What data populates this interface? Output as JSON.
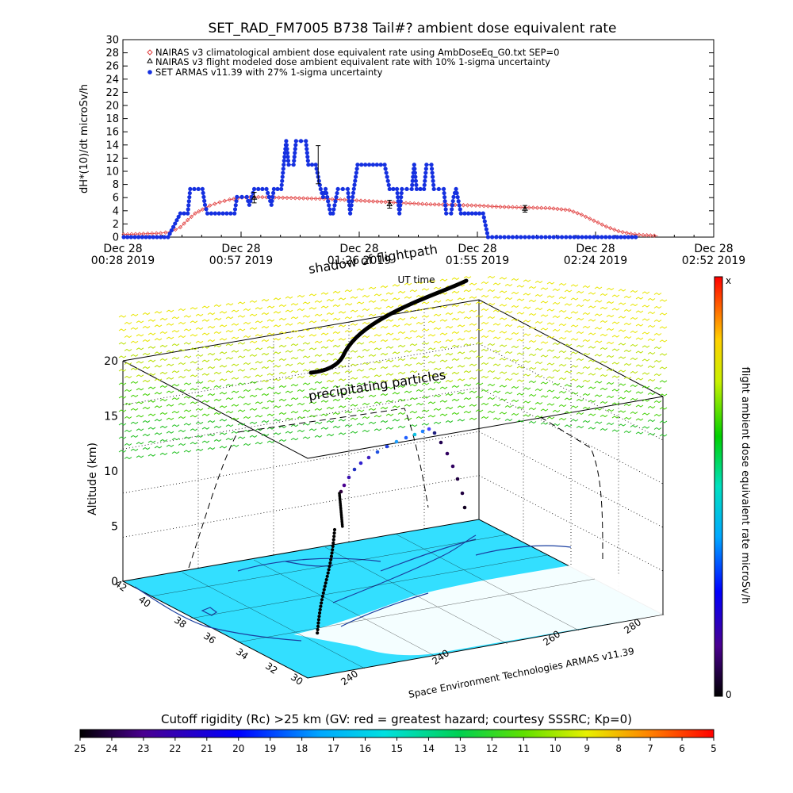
{
  "title": "SET_RAD_FM7005  B738 Tail#? ambient dose equivalent rate",
  "colors": {
    "climatological": "#e03c3c",
    "armas": "#1530e0",
    "modeled": "#000000",
    "background": "#ffffff",
    "surface": "#33dfff",
    "flightpath_shadow": "#000000"
  },
  "chart_data": [
    {
      "type": "line",
      "ylabel": "dH*(10)/dt microSv/h",
      "ylim": [
        0,
        30
      ],
      "yticks": [
        "0",
        "2",
        "4",
        "6",
        "8",
        "10",
        "12",
        "14",
        "16",
        "18",
        "20",
        "22",
        "24",
        "26",
        "28",
        "30"
      ],
      "xlim_hours_ut": [
        0.4667,
        2.8667
      ],
      "xticks": [
        {
          "line1": "Dec 28",
          "line2": "00:28 2019"
        },
        {
          "line1": "Dec 28",
          "line2": "00:57 2019"
        },
        {
          "line1": "Dec 28",
          "line2": "01:26 2019"
        },
        {
          "line1": "Dec 28",
          "line2": "01:55 2019"
        },
        {
          "line1": "Dec 28",
          "line2": "02:24 2019"
        },
        {
          "line1": "Dec 28",
          "line2": "02:52 2019"
        }
      ],
      "xlabel": "UT time",
      "legend_position": "top-left",
      "series": [
        {
          "name": "NAIRAS v3 climatological ambient dose equivalent rate using AmbDoseEq_G0.txt SEP=0",
          "marker": "diamond",
          "points": [
            [
              0.47,
              0.4
            ],
            [
              0.55,
              0.5
            ],
            [
              0.62,
              0.6
            ],
            [
              0.66,
              0.8
            ],
            [
              0.7,
              1.5
            ],
            [
              0.73,
              2.6
            ],
            [
              0.76,
              3.6
            ],
            [
              0.79,
              4.2
            ],
            [
              0.82,
              4.8
            ],
            [
              0.86,
              5.3
            ],
            [
              0.9,
              5.7
            ],
            [
              0.95,
              6.0
            ],
            [
              1.0,
              6.1
            ],
            [
              1.1,
              6.0
            ],
            [
              1.2,
              5.9
            ],
            [
              1.3,
              5.8
            ],
            [
              1.4,
              5.6
            ],
            [
              1.5,
              5.4
            ],
            [
              1.6,
              5.2
            ],
            [
              1.7,
              5.0
            ],
            [
              1.8,
              4.9
            ],
            [
              1.9,
              4.8
            ],
            [
              2.0,
              4.6
            ],
            [
              2.1,
              4.5
            ],
            [
              2.2,
              4.4
            ],
            [
              2.28,
              4.1
            ],
            [
              2.33,
              3.4
            ],
            [
              2.38,
              2.5
            ],
            [
              2.43,
              1.6
            ],
            [
              2.48,
              0.9
            ],
            [
              2.53,
              0.5
            ],
            [
              2.58,
              0.3
            ],
            [
              2.64,
              0.2
            ]
          ]
        },
        {
          "name": "NAIRAS v3 flight modeled dose ambient equivalent rate with 10% 1-sigma uncertainty",
          "marker": "triangle",
          "points": [
            [
              1.0,
              6.0
            ],
            [
              1.55,
              5.0
            ],
            [
              2.1,
              4.3
            ]
          ],
          "errors": [
            0.8,
            0.6,
            0.5
          ]
        },
        {
          "name": "SET ARMAS v11.39 with 27% 1-sigma uncertainty",
          "marker": "filled-circle",
          "points": [
            [
              0.47,
              0
            ],
            [
              0.56,
              0
            ],
            [
              0.65,
              0
            ],
            [
              0.7,
              3.6
            ],
            [
              0.73,
              3.6
            ],
            [
              0.74,
              7.3
            ],
            [
              0.79,
              7.3
            ],
            [
              0.8,
              4.9
            ],
            [
              0.81,
              3.6
            ],
            [
              0.92,
              3.6
            ],
            [
              0.93,
              6.1
            ],
            [
              0.97,
              6.1
            ],
            [
              0.98,
              4.9
            ],
            [
              1.0,
              7.3
            ],
            [
              1.05,
              7.3
            ],
            [
              1.07,
              4.9
            ],
            [
              1.08,
              7.3
            ],
            [
              1.11,
              7.3
            ],
            [
              1.12,
              11.0
            ],
            [
              1.13,
              14.6
            ],
            [
              1.14,
              11.0
            ],
            [
              1.16,
              11.0
            ],
            [
              1.17,
              14.6
            ],
            [
              1.21,
              14.6
            ],
            [
              1.22,
              11.0
            ],
            [
              1.25,
              11.0
            ],
            [
              1.27,
              7.3
            ],
            [
              1.28,
              6.1
            ],
            [
              1.29,
              7.3
            ],
            [
              1.31,
              3.6
            ],
            [
              1.32,
              3.6
            ],
            [
              1.34,
              7.3
            ],
            [
              1.38,
              7.3
            ],
            [
              1.39,
              3.6
            ],
            [
              1.4,
              6.1
            ],
            [
              1.42,
              11.0
            ],
            [
              1.53,
              11.0
            ],
            [
              1.55,
              7.3
            ],
            [
              1.58,
              7.3
            ],
            [
              1.59,
              3.6
            ],
            [
              1.6,
              7.3
            ],
            [
              1.64,
              7.3
            ],
            [
              1.65,
              11.0
            ],
            [
              1.66,
              7.3
            ],
            [
              1.69,
              7.3
            ],
            [
              1.7,
              11.0
            ],
            [
              1.72,
              11.0
            ],
            [
              1.73,
              7.3
            ],
            [
              1.77,
              7.3
            ],
            [
              1.78,
              3.6
            ],
            [
              1.8,
              3.6
            ],
            [
              1.81,
              6.1
            ],
            [
              1.82,
              7.3
            ],
            [
              1.84,
              3.6
            ],
            [
              1.93,
              3.6
            ],
            [
              1.95,
              0
            ],
            [
              2.1,
              0
            ],
            [
              2.2,
              0
            ],
            [
              2.3,
              0
            ],
            [
              2.38,
              0
            ],
            [
              2.46,
              0
            ],
            [
              2.55,
              0
            ]
          ],
          "errors": [
            [
              1.26,
              11.0,
              2.9
            ]
          ]
        }
      ]
    },
    {
      "type": "scatter",
      "chart_kind": "3d-surface-map",
      "label_top": "shadow of flightpath",
      "label_mid": "precipitating particles",
      "zlabel": "Altitude (km)",
      "zticks": [
        "0",
        "5",
        "10",
        "15",
        "20"
      ],
      "ylabel_ticks": [
        "42",
        "40",
        "38",
        "36",
        "34",
        "32",
        "30"
      ],
      "xlabel_ticks": [
        "240",
        "240",
        "260",
        "280"
      ],
      "credit": "Space Environment Technologies ARMAS v11.39",
      "flight_altitude_km": [
        0.2,
        1.0,
        2.5,
        4.0,
        5.5,
        7.0,
        8.5,
        9.5,
        10.3,
        11.0,
        11.6,
        12.0,
        12.4,
        12.8,
        13.2,
        13.5,
        13.2,
        11.5,
        10.0,
        8.6
      ]
    }
  ],
  "colorbar_right": {
    "label": "flight ambient dose equivalent rate microSv/h",
    "top_label": "x",
    "bottom_label": "0"
  },
  "colorbar_bottom": {
    "title": "Cutoff rigidity (Rc) >25 km (GV: red = greatest hazard; courtesy SSSRC; Kp=0)",
    "ticks": [
      "25",
      "24",
      "23",
      "22",
      "21",
      "20",
      "19",
      "18",
      "17",
      "16",
      "15",
      "14",
      "13",
      "12",
      "11",
      "10",
      "9",
      "8",
      "7",
      "6",
      "5"
    ]
  }
}
